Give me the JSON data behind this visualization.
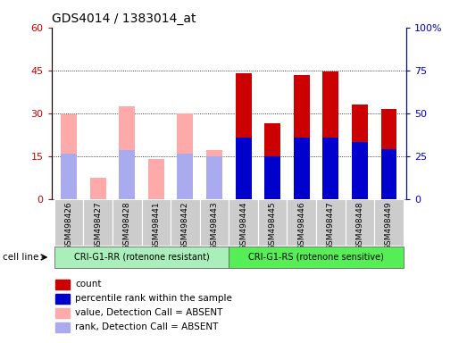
{
  "title": "GDS4014 / 1383014_at",
  "samples": [
    "GSM498426",
    "GSM498427",
    "GSM498428",
    "GSM498441",
    "GSM498442",
    "GSM498443",
    "GSM498444",
    "GSM498445",
    "GSM498446",
    "GSM498447",
    "GSM498448",
    "GSM498449"
  ],
  "group1_count": 6,
  "group2_count": 6,
  "group1_label": "CRI-G1-RR (rotenone resistant)",
  "group2_label": "CRI-G1-RS (rotenone sensitive)",
  "cell_line_label": "cell line",
  "count_values": [
    null,
    null,
    null,
    null,
    null,
    null,
    44.0,
    26.5,
    43.5,
    44.5,
    33.0,
    31.5
  ],
  "rank_values_pct": [
    null,
    null,
    null,
    null,
    null,
    null,
    36.0,
    25.0,
    36.0,
    36.0,
    33.0,
    29.0
  ],
  "absent_value": [
    29.5,
    7.5,
    32.5,
    14.0,
    30.0,
    17.0,
    null,
    null,
    null,
    null,
    null,
    31.5
  ],
  "absent_rank_pct": [
    26.5,
    null,
    28.5,
    null,
    26.5,
    25.0,
    null,
    null,
    null,
    null,
    null,
    28.5
  ],
  "ylim_left": [
    0,
    60
  ],
  "ylim_right": [
    0,
    100
  ],
  "yticks_left": [
    0,
    15,
    30,
    45,
    60
  ],
  "yticks_right": [
    0,
    25,
    50,
    75,
    100
  ],
  "ytick_labels_left": [
    "0",
    "15",
    "30",
    "45",
    "60"
  ],
  "ytick_labels_right": [
    "0",
    "25",
    "50",
    "75",
    "100%"
  ],
  "color_count": "#cc0000",
  "color_rank": "#0000cc",
  "color_absent_value": "#ffaaaa",
  "color_absent_rank": "#aaaaee",
  "color_group1_bg": "#aaeebb",
  "color_group2_bg": "#55ee55",
  "color_sample_bg": "#cccccc",
  "bar_width": 0.55,
  "legend_items": [
    {
      "color": "#cc0000",
      "label": "count"
    },
    {
      "color": "#0000cc",
      "label": "percentile rank within the sample"
    },
    {
      "color": "#ffaaaa",
      "label": "value, Detection Call = ABSENT"
    },
    {
      "color": "#aaaaee",
      "label": "rank, Detection Call = ABSENT"
    }
  ]
}
